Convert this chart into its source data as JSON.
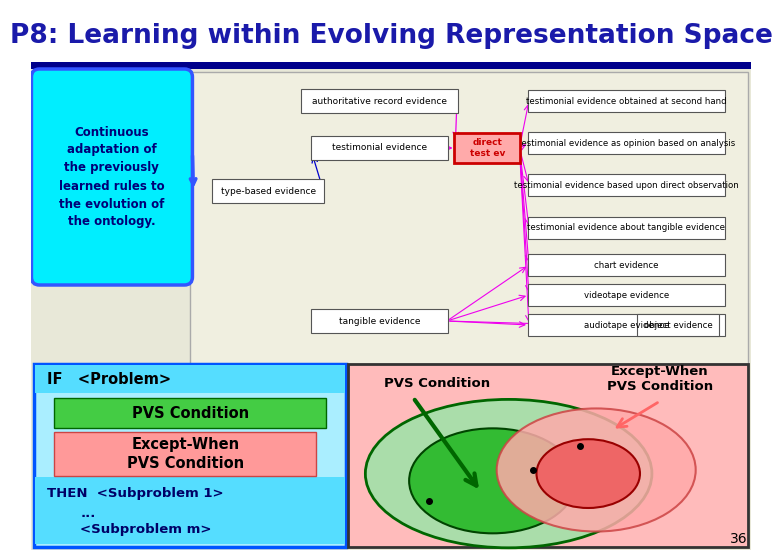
{
  "title": "P8: Learning within Evolving Representation Space",
  "title_color": "#1a1aaa",
  "title_bar_color": "#00008b",
  "slide_bg": "#ffffff",
  "bg_color": "#e8e8d8",
  "callout_text": "Continuous\nadaptation of\nthe previously\nlearned rules to\nthe evolution of\nthe ontology.",
  "callout_bg": "#00eeff",
  "callout_border": "#3355ff",
  "page_number": "36"
}
